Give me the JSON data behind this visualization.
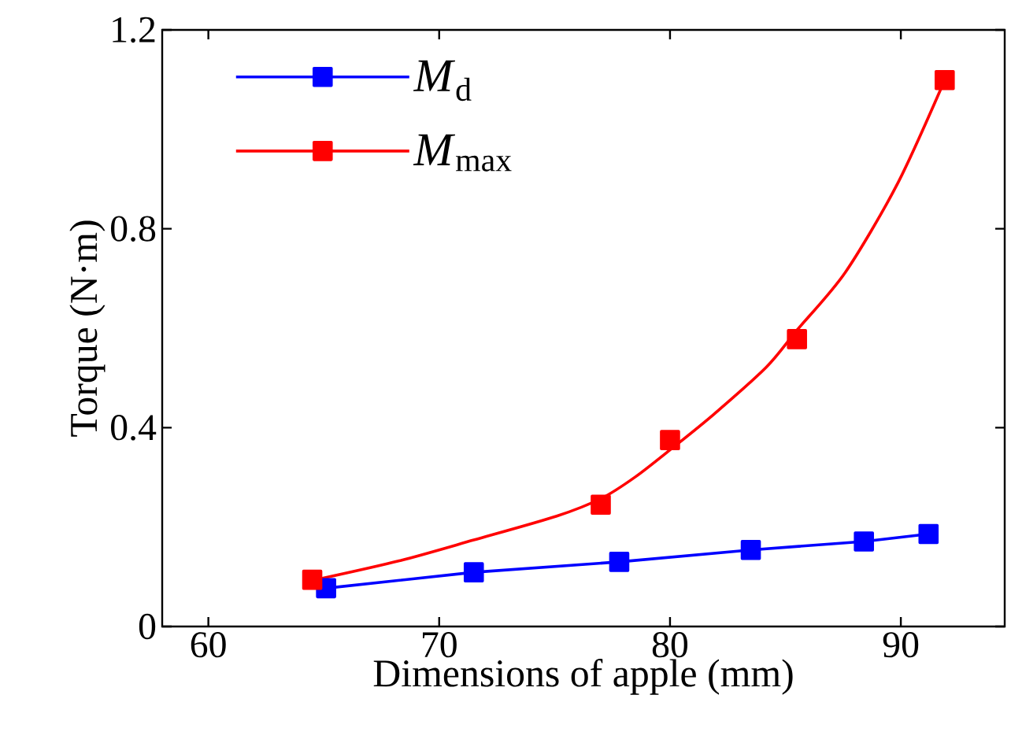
{
  "chart_data": {
    "type": "line",
    "xlabel": "Dimensions of apple (mm)",
    "ylabel": "Torque (N·m)",
    "xlim": [
      58,
      94.5
    ],
    "xticks": [
      60,
      70,
      80,
      90
    ],
    "ylim": [
      0,
      1.2
    ],
    "yticks": [
      0,
      0.4,
      0.8,
      1.2
    ],
    "marker": "square",
    "legend": "top left",
    "series": [
      {
        "name": "*M*$_{d}$",
        "color": "#0000ff",
        "x": [
          65.1,
          71.5,
          77.8,
          83.5,
          88.4,
          91.2
        ],
        "values": [
          0.077,
          0.109,
          0.13,
          0.154,
          0.171,
          0.186
        ]
      },
      {
        "name": "*M*$_{max}$",
        "type": "scatter",
        "color": "#ff0000",
        "x": [
          64.5,
          77.0,
          80.0,
          85.5,
          91.9
        ],
        "values": [
          0.094,
          0.245,
          0.375,
          0.578,
          1.099
        ]
      },
      {
        "type": "line",
        "marker": "none",
        "color": "#ff0000",
        "x": [
          64.86,
          68.27,
          71.5,
          75.09,
          77.04,
          78.5,
          80.02,
          81.9,
          84.18,
          85.5,
          87.59,
          89.86,
          91.9
        ],
        "values": [
          0.096,
          0.132,
          0.174,
          0.222,
          0.258,
          0.301,
          0.356,
          0.427,
          0.522,
          0.596,
          0.712,
          0.891,
          1.099
        ]
      }
    ]
  }
}
